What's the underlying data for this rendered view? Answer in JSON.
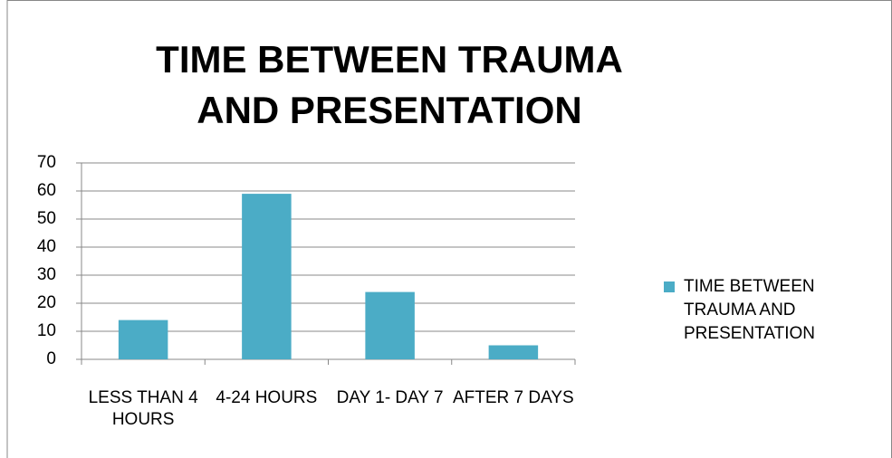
{
  "chart_data": {
    "type": "bar",
    "title": "TIME BETWEEN TRAUMA AND PRESENTATION",
    "categories": [
      "LESS THAN 4 HOURS",
      "4-24 HOURS",
      "DAY 1- DAY 7",
      "AFTER 7 DAYS"
    ],
    "series": [
      {
        "name": "TIME BETWEEN  TRAUMA AND PRESENTATION",
        "color": "#4bacc6",
        "values": [
          14,
          59,
          24,
          5
        ]
      }
    ],
    "ylim": [
      0,
      70
    ],
    "yticks": [
      0,
      10,
      20,
      30,
      40,
      50,
      60,
      70
    ],
    "grid": true,
    "legend": "right"
  }
}
